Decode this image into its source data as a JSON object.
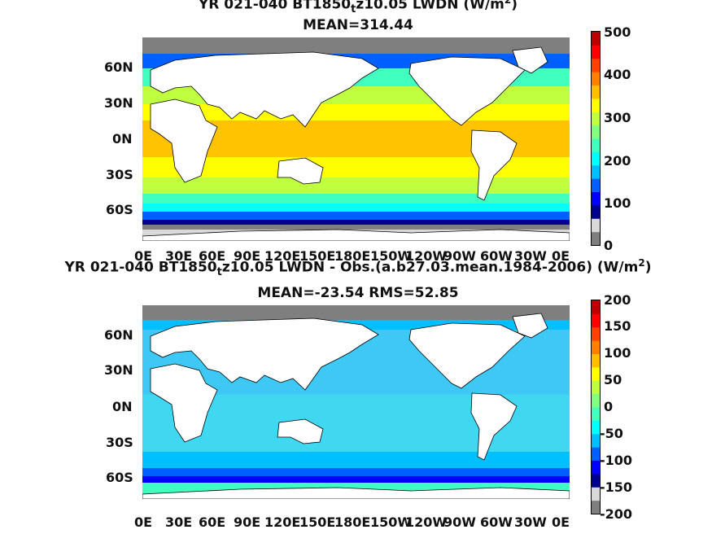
{
  "panels": [
    {
      "title_a": "YR 021-040 BT1850",
      "title_sub": "t",
      "title_b": "z10.05 LWDN (W/m",
      "title_sup": "2",
      "title_c": ")",
      "stat": "MEAN=314.44",
      "lat_labels": [
        "60N",
        "30N",
        "0N",
        "30S",
        "60S"
      ],
      "lon_labels": [
        "0E",
        "30E",
        "60E",
        "90E",
        "120E",
        "150E",
        "180E",
        "150W",
        "120W",
        "90W",
        "60W",
        "30W",
        "0E"
      ],
      "colorbar_labels": [
        "500",
        "400",
        "300",
        "200",
        "100",
        "0"
      ],
      "colors": [
        "#7f7f7f",
        "#d9d9d9",
        "#00008f",
        "#0000ff",
        "#0060ff",
        "#00bfff",
        "#00ffff",
        "#40ffbf",
        "#80ff80",
        "#bfff40",
        "#ffff00",
        "#ffbf00",
        "#ff8000",
        "#ff4000",
        "#ff0000",
        "#bf0000"
      ],
      "ocean": "#ffc300"
    },
    {
      "title_a": "YR 021-040 BT1850",
      "title_sub": "t",
      "title_b": "z10.05 LWDN - Obs.(a.b27.03.mean.1984-2006) (W/m",
      "title_sup": "2",
      "title_c": ")",
      "stat": "MEAN=-23.54 RMS=52.85",
      "lat_labels": [
        "60N",
        "30N",
        "0N",
        "30S",
        "60S"
      ],
      "lon_labels": [
        "0E",
        "30E",
        "60E",
        "90E",
        "120E",
        "150E",
        "180E",
        "150W",
        "120W",
        "90W",
        "60W",
        "30W",
        "0E"
      ],
      "colorbar_labels": [
        "200",
        "150",
        "100",
        "50",
        "0",
        "-50",
        "-100",
        "-150",
        "-200"
      ],
      "colors": [
        "#7f7f7f",
        "#d9d9d9",
        "#00008f",
        "#0000ff",
        "#0060ff",
        "#00bfff",
        "#00ffff",
        "#40ffbf",
        "#80ff80",
        "#bfff40",
        "#ffff00",
        "#ffbf00",
        "#ff8000",
        "#ff4000",
        "#ff0000",
        "#bf0000"
      ],
      "ocean": "#40d8f0"
    }
  ]
}
